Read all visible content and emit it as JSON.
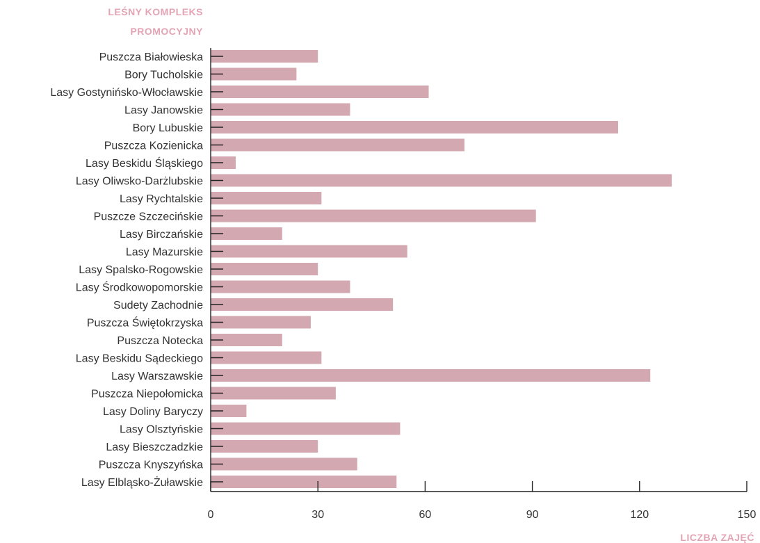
{
  "colors": {
    "bar": "#d4a8b0",
    "axis": "#222222",
    "text": "#333333",
    "accent": "#e3a4b4"
  },
  "chart_data": {
    "type": "bar",
    "orientation": "horizontal",
    "categories": [
      "Puszcza Białowieska",
      "Bory Tucholskie",
      "Lasy Gostynińsko-Włocławskie",
      "Lasy Janowskie",
      "Bory Lubuskie",
      "Puszcza Kozienicka",
      "Lasy Beskidu Śląskiego",
      "Lasy Oliwsko-Darżlubskie",
      "Lasy Rychtalskie",
      "Puszcze Szczecińskie",
      "Lasy Birczańskie",
      "Lasy Mazurskie",
      "Lasy Spalsko-Rogowskie",
      "Lasy Środkowopomorskie",
      "Sudety Zachodnie",
      "Puszcza Świętokrzyska",
      "Puszcza Notecka",
      "Lasy Beskidu Sądeckiego",
      "Lasy Warszawskie",
      "Puszcza Niepołomicka",
      "Lasy Doliny Baryczy",
      "Lasy Olsztyńskie",
      "Lasy Bieszczadzkie",
      "Puszcza Knyszyńska",
      "Lasy Elbląsko-Żuławskie"
    ],
    "values": [
      30,
      24,
      61,
      39,
      114,
      71,
      7,
      129,
      31,
      91,
      20,
      55,
      30,
      39,
      51,
      28,
      20,
      31,
      123,
      35,
      10,
      53,
      30,
      41,
      52
    ],
    "xlabel": "LICZBA ZAJĘĆ",
    "ylabel_lines": [
      "LEŚNY KOMPLEKS",
      "PROMOCYJNY"
    ],
    "xlim": [
      0,
      150
    ],
    "xticks": [
      0,
      30,
      60,
      90,
      120,
      150
    ],
    "xtick_labels": [
      "0",
      "30",
      "60",
      "90",
      "120",
      "150"
    ],
    "grid": false,
    "legend": "none"
  }
}
